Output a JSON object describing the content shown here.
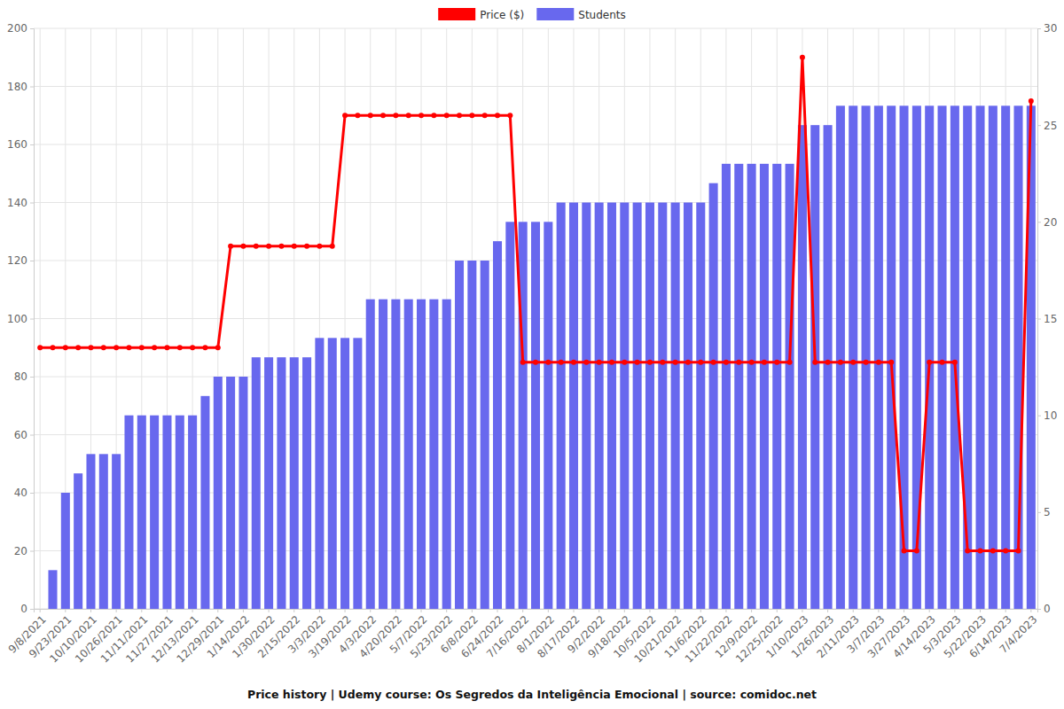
{
  "chart_data": {
    "type": "bar",
    "title": "Price history | Udemy course: Os Segredos da Inteligência Emocional | source: comidoc.net",
    "categories": [
      "9/8/2021",
      null,
      "9/23/2021",
      null,
      "10/10/2021",
      null,
      "10/26/2021",
      null,
      "11/11/2021",
      null,
      "11/27/2021",
      null,
      "12/13/2021",
      null,
      "12/29/2021",
      null,
      "1/14/2022",
      null,
      "1/30/2022",
      null,
      "2/15/2022",
      null,
      "3/3/2022",
      null,
      "3/19/2022",
      null,
      "4/3/2022",
      null,
      "4/20/2022",
      null,
      "5/7/2022",
      null,
      "5/23/2022",
      null,
      "6/8/2022",
      null,
      "6/24/2022",
      null,
      "7/16/2022",
      null,
      "8/1/2022",
      null,
      "8/17/2022",
      null,
      "9/2/2022",
      null,
      "9/18/2022",
      null,
      "10/5/2022",
      null,
      "10/21/2022",
      null,
      "11/6/2022",
      null,
      "11/22/2022",
      null,
      "12/9/2022",
      null,
      "12/25/2022",
      null,
      "1/10/2023",
      null,
      "1/26/2023",
      null,
      "2/11/2023",
      null,
      "3/7/2023",
      null,
      "3/27/2023",
      null,
      "4/14/2023",
      null,
      "5/3/2023",
      null,
      "5/22/2023",
      null,
      "6/14/2023",
      null,
      "7/4/2023"
    ],
    "series": [
      {
        "name": "Price ($)",
        "type": "line",
        "color": "#ff0000",
        "marker": "circle",
        "values": [
          90,
          90,
          90,
          90,
          90,
          90,
          90,
          90,
          90,
          90,
          90,
          90,
          90,
          90,
          90,
          125,
          125,
          125,
          125,
          125,
          125,
          125,
          125,
          125,
          170,
          170,
          170,
          170,
          170,
          170,
          170,
          170,
          170,
          170,
          170,
          170,
          170,
          170,
          85,
          85,
          85,
          85,
          85,
          85,
          85,
          85,
          85,
          85,
          85,
          85,
          85,
          85,
          85,
          85,
          85,
          85,
          85,
          85,
          85,
          85,
          190,
          85,
          85,
          85,
          85,
          85,
          85,
          85,
          20,
          20,
          85,
          85,
          85,
          20,
          20,
          20,
          20,
          20,
          175
        ]
      },
      {
        "name": "Students",
        "type": "bar",
        "color": "#6868ee",
        "axis": "y2",
        "values": [
          0,
          2,
          6,
          7,
          8,
          8,
          8,
          10,
          10,
          10,
          10,
          10,
          10,
          11,
          12,
          12,
          12,
          13,
          13,
          13,
          13,
          13,
          14,
          14,
          14,
          14,
          16,
          16,
          16,
          16,
          16,
          16,
          16,
          18,
          18,
          18,
          19,
          20,
          20,
          20,
          20,
          21,
          21,
          21,
          21,
          21,
          21,
          21,
          21,
          21,
          21,
          21,
          21,
          22,
          23,
          23,
          23,
          23,
          23,
          23,
          25,
          25,
          25,
          26,
          26,
          26,
          26,
          26,
          26,
          26,
          26,
          26,
          26,
          26,
          26,
          26,
          26,
          26,
          26
        ]
      }
    ],
    "ylim": [
      0,
      200
    ],
    "yticks": [
      0,
      20,
      40,
      60,
      80,
      100,
      120,
      140,
      160,
      180,
      200
    ],
    "y2lim": [
      0,
      30
    ],
    "y2ticks": [
      0,
      5,
      10,
      15,
      20,
      25,
      30
    ],
    "grid": true,
    "legend": "top"
  }
}
